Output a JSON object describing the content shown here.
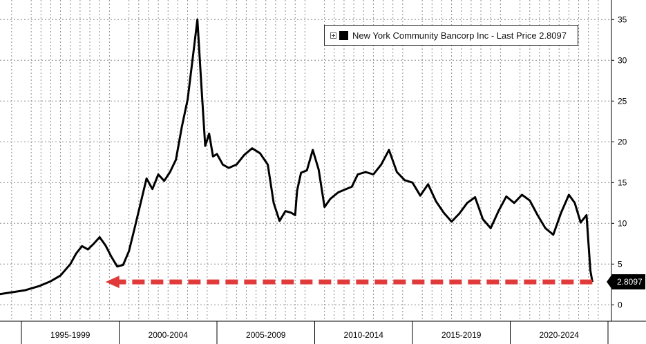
{
  "chart_data": {
    "type": "line",
    "title": "",
    "xlabel": "",
    "ylabel": "",
    "ylim": [
      -2.5,
      37.5
    ],
    "y_ticks": [
      0,
      5,
      10,
      15,
      20,
      25,
      30,
      35
    ],
    "x_tick_labels": [
      "1995-1999",
      "2000-2004",
      "2005-2009",
      "2010-2014",
      "2015-2019",
      "2020-2024"
    ],
    "grid": true,
    "legend_position": "top-right",
    "legend_label": "New York Community Bancorp Inc - Last Price 2.8097",
    "last_price_label": "2.8097",
    "series": [
      {
        "name": "New York Community Bancorp Inc - Last Price",
        "color": "#000000",
        "x": [
          1993.6,
          1994.4,
          1995.2,
          1995.9,
          1996.5,
          1997.0,
          1997.5,
          1997.8,
          1998.1,
          1998.4,
          1998.7,
          1999.0,
          1999.3,
          1999.6,
          1999.9,
          2000.2,
          2000.5,
          2000.8,
          2001.1,
          2001.4,
          2001.7,
          2002.0,
          2002.3,
          2002.6,
          2002.9,
          2003.2,
          2003.5,
          2003.8,
          2004.0,
          2004.2,
          2004.4,
          2004.6,
          2004.8,
          2005.0,
          2005.3,
          2005.6,
          2006.0,
          2006.4,
          2006.8,
          2007.2,
          2007.6,
          2007.9,
          2008.2,
          2008.5,
          2008.8,
          2009.0,
          2009.1,
          2009.3,
          2009.6,
          2009.9,
          2010.2,
          2010.5,
          2010.8,
          2011.2,
          2011.6,
          2011.9,
          2012.2,
          2012.6,
          2013.0,
          2013.4,
          2013.8,
          2014.2,
          2014.6,
          2015.0,
          2015.4,
          2015.8,
          2016.2,
          2016.6,
          2017.0,
          2017.4,
          2017.8,
          2018.2,
          2018.6,
          2019.0,
          2019.4,
          2019.8,
          2020.2,
          2020.6,
          2021.0,
          2021.4,
          2021.8,
          2022.2,
          2022.6,
          2023.0,
          2023.3,
          2023.6,
          2023.9,
          2024.1,
          2024.2
        ],
        "y": [
          1.2,
          1.5,
          1.8,
          2.3,
          2.9,
          3.6,
          5.0,
          6.3,
          7.2,
          6.8,
          7.5,
          8.3,
          7.3,
          5.9,
          4.7,
          4.9,
          6.6,
          9.5,
          12.5,
          15.5,
          14.2,
          16.0,
          15.2,
          16.3,
          17.8,
          21.8,
          25.2,
          31.0,
          35.0,
          27.0,
          19.5,
          21.0,
          18.2,
          18.5,
          17.2,
          16.8,
          17.2,
          18.4,
          19.2,
          18.6,
          17.2,
          12.5,
          10.3,
          11.5,
          11.3,
          11.0,
          14.0,
          16.2,
          16.5,
          19.0,
          16.6,
          12.0,
          13.0,
          13.8,
          14.2,
          14.5,
          16.0,
          16.3,
          16.0,
          17.2,
          19.0,
          16.3,
          15.3,
          15.0,
          13.4,
          14.8,
          12.7,
          11.3,
          10.2,
          11.2,
          12.5,
          13.2,
          10.5,
          9.4,
          11.5,
          13.3,
          12.5,
          13.5,
          12.8,
          11.0,
          9.4,
          8.6,
          11.3,
          13.5,
          12.5,
          10.1,
          11.0,
          4.2,
          2.8097
        ]
      }
    ],
    "annotations": [
      {
        "type": "dashed-arrow",
        "color": "#e03a3a",
        "y": 2.8097,
        "x_start": 2024.2,
        "x_end": 1999.3
      }
    ]
  }
}
